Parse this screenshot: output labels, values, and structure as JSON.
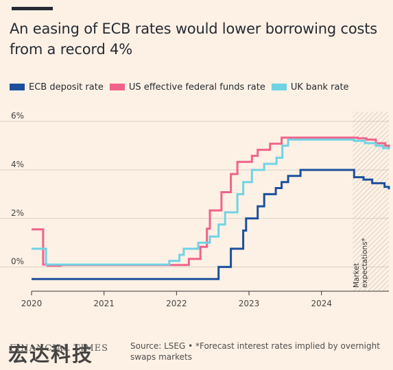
{
  "title": "An easing of ECB rates would lower borrowing costs from a record 4%",
  "legend": [
    {
      "label": "ECB deposit rate",
      "color": "#1b4f9c"
    },
    {
      "label": "US effective federal funds rate",
      "color": "#f0628a"
    },
    {
      "label": "UK bank rate",
      "color": "#6fd3e4"
    }
  ],
  "annotation": "Market expectations*",
  "footer": {
    "logo": "FINANCIAL TIMES",
    "watermark": "宏达科技",
    "source": "Source: LSEG • *Forecast interest rates implied by overnight swaps markets"
  },
  "chart_data": {
    "type": "line",
    "x_ticks": [
      "2020",
      "2021",
      "2022",
      "2023",
      "2024"
    ],
    "y_ticks": [
      "6%",
      "4%",
      "2%",
      "0%"
    ],
    "y_tick_values": [
      6,
      4,
      2,
      0
    ],
    "xlim": [
      2020.0,
      2024.93
    ],
    "ylim": [
      -1.0,
      6.4
    ],
    "forecast_start": 2024.43,
    "series": [
      {
        "name": "ECB deposit rate",
        "color": "#1b4f9c",
        "step": true,
        "points": [
          [
            2020.0,
            -0.5
          ],
          [
            2022.58,
            0.0
          ],
          [
            2022.75,
            0.75
          ],
          [
            2022.92,
            1.5
          ],
          [
            2022.96,
            2.0
          ],
          [
            2023.12,
            2.5
          ],
          [
            2023.21,
            3.0
          ],
          [
            2023.37,
            3.25
          ],
          [
            2023.45,
            3.5
          ],
          [
            2023.54,
            3.75
          ],
          [
            2023.71,
            4.0
          ],
          [
            2024.43,
            4.0
          ],
          [
            2024.45,
            3.7
          ],
          [
            2024.58,
            3.6
          ],
          [
            2024.7,
            3.45
          ],
          [
            2024.87,
            3.3
          ],
          [
            2024.93,
            3.2
          ]
        ]
      },
      {
        "name": "US effective federal funds rate",
        "color": "#f0628a",
        "step": true,
        "points": [
          [
            2020.0,
            1.55
          ],
          [
            2020.16,
            0.1
          ],
          [
            2020.22,
            0.05
          ],
          [
            2020.4,
            0.08
          ],
          [
            2021.0,
            0.08
          ],
          [
            2021.8,
            0.08
          ],
          [
            2022.17,
            0.33
          ],
          [
            2022.33,
            0.83
          ],
          [
            2022.42,
            1.58
          ],
          [
            2022.46,
            2.33
          ],
          [
            2022.62,
            3.08
          ],
          [
            2022.75,
            3.83
          ],
          [
            2022.84,
            4.33
          ],
          [
            2023.04,
            4.58
          ],
          [
            2023.12,
            4.83
          ],
          [
            2023.29,
            5.08
          ],
          [
            2023.45,
            5.33
          ],
          [
            2024.43,
            5.33
          ],
          [
            2024.5,
            5.3
          ],
          [
            2024.62,
            5.25
          ],
          [
            2024.75,
            5.1
          ],
          [
            2024.88,
            5.0
          ],
          [
            2024.93,
            4.85
          ]
        ]
      },
      {
        "name": "UK bank rate",
        "color": "#6fd3e4",
        "step": true,
        "points": [
          [
            2020.0,
            0.75
          ],
          [
            2020.2,
            0.1
          ],
          [
            2021.9,
            0.25
          ],
          [
            2022.04,
            0.5
          ],
          [
            2022.1,
            0.75
          ],
          [
            2022.3,
            1.0
          ],
          [
            2022.46,
            1.25
          ],
          [
            2022.58,
            1.75
          ],
          [
            2022.67,
            2.25
          ],
          [
            2022.84,
            3.0
          ],
          [
            2022.92,
            3.5
          ],
          [
            2023.04,
            4.0
          ],
          [
            2023.21,
            4.25
          ],
          [
            2023.38,
            4.5
          ],
          [
            2023.46,
            5.0
          ],
          [
            2023.54,
            5.25
          ],
          [
            2024.43,
            5.25
          ],
          [
            2024.45,
            5.2
          ],
          [
            2024.6,
            5.1
          ],
          [
            2024.75,
            5.0
          ],
          [
            2024.85,
            4.9
          ],
          [
            2024.93,
            4.85
          ]
        ]
      }
    ]
  }
}
